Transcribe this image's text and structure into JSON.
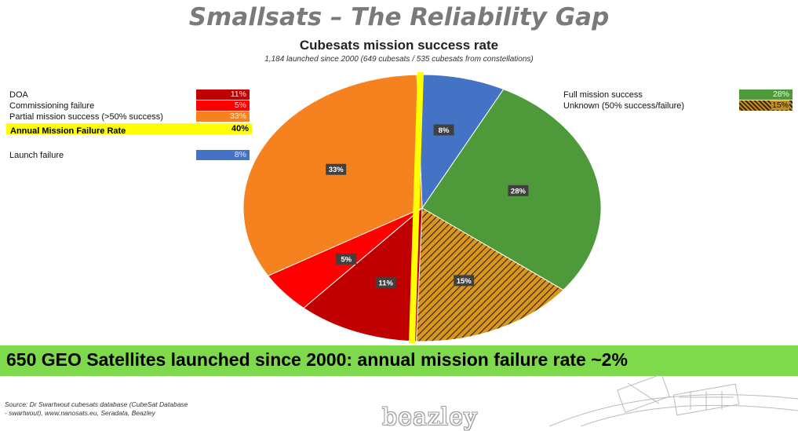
{
  "slide": {
    "title": "Smallsats – The Reliability Gap",
    "banner": "650 GEO Satellites launched since 2000: annual mission failure rate ~2%",
    "source_line1": "Source: Dr Swartwout cubesats database (CubeSat Database",
    "source_line2": "- swartwout), www.nanosats.eu, Seradata, Beazley",
    "logo": "beazley"
  },
  "legend_left": [
    {
      "label": "DOA",
      "value": "11%",
      "color": "#c00000"
    },
    {
      "label": "Commissioning failure",
      "value": "5%",
      "color": "#ff0000"
    },
    {
      "label": "Partial mission success (>50% success)",
      "value": "33%",
      "color": "#f5821f"
    }
  ],
  "failure_rate": {
    "label": "Annual Mission Failure Rate",
    "value": "40%"
  },
  "legend_launch": {
    "label": "Launch failure",
    "value": "8%",
    "color": "#4472c4"
  },
  "legend_right": [
    {
      "label": "Full mission success",
      "value": "28%",
      "color": "#4e9a3a"
    },
    {
      "label": "Unknown (50% success/failure)",
      "value": "15%",
      "color": "hatched"
    }
  ],
  "chart_data": {
    "type": "pie",
    "title": "Cubesats mission success rate",
    "subtitle": "1,184 launched since 2000  (649 cubesats / 535 cubesats from constellations)",
    "slices": [
      {
        "label": "Launch failure",
        "value": 8,
        "display": "8%",
        "color": "#4472c4"
      },
      {
        "label": "Full mission success",
        "value": 28,
        "display": "28%",
        "color": "#4e9a3a"
      },
      {
        "label": "Unknown (50% success/failure)",
        "value": 15,
        "display": "15%",
        "color": "hatched"
      },
      {
        "label": "DOA",
        "value": 11,
        "display": "11%",
        "color": "#c00000"
      },
      {
        "label": "Commissioning failure",
        "value": 5,
        "display": "5%",
        "color": "#ff0000"
      },
      {
        "label": "Partial mission success (>50% success)",
        "value": 33,
        "display": "33%",
        "color": "#f5821f"
      }
    ]
  }
}
